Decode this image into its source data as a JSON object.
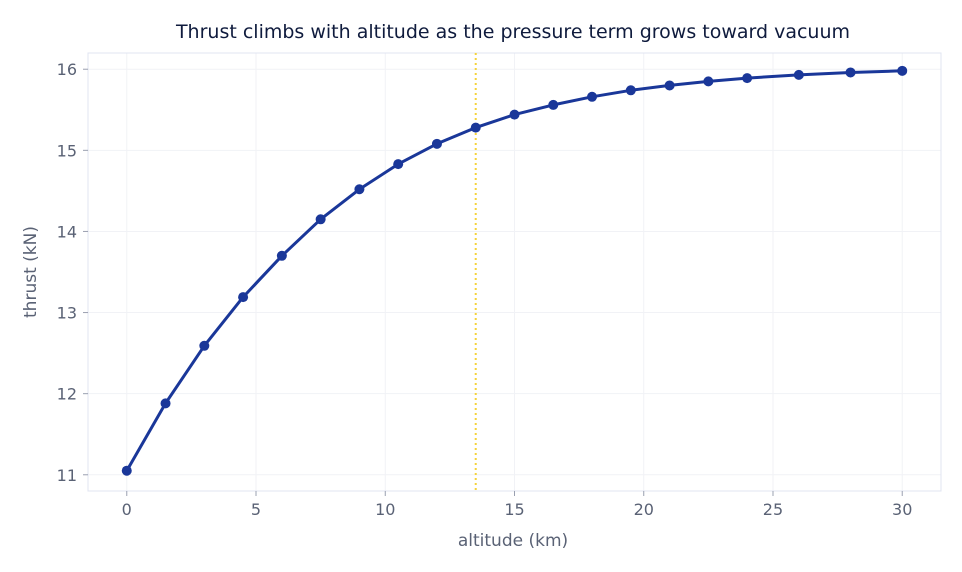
{
  "chart_data": {
    "type": "line",
    "title": "Thrust climbs with altitude as the pressure term grows toward vacuum",
    "xlabel": "altitude (km)",
    "ylabel": "thrust (kN)",
    "xlim": [
      -1.5,
      31.5
    ],
    "ylim": [
      10.8,
      16.2
    ],
    "xticks": [
      0,
      5,
      10,
      15,
      20,
      25,
      30
    ],
    "yticks": [
      11,
      12,
      13,
      14,
      15,
      16
    ],
    "grid": true,
    "legend": "none",
    "reference_line_x": 13.5,
    "colors": {
      "series": "#1a3799",
      "reference": "#f5d33a",
      "frame": "#e0e4f2",
      "grid": "#f1f2f6"
    },
    "series": [
      {
        "x": [
          0,
          1.5,
          3,
          4.5,
          6,
          7.5,
          9,
          10.5,
          12,
          13.5,
          15,
          16.5,
          18,
          19.5,
          21,
          22.5,
          24,
          26,
          28,
          30
        ],
        "y": [
          11.05,
          11.88,
          12.59,
          13.19,
          13.7,
          14.15,
          14.52,
          14.83,
          15.08,
          15.28,
          15.44,
          15.56,
          15.66,
          15.74,
          15.8,
          15.85,
          15.89,
          15.93,
          15.96,
          15.98
        ]
      }
    ]
  }
}
